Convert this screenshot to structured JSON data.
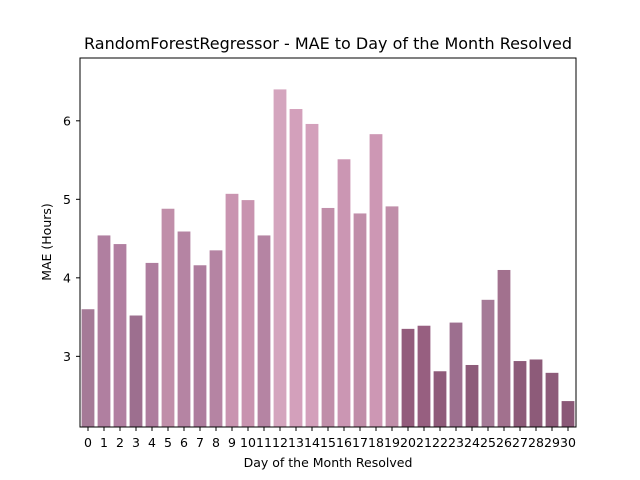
{
  "chart_data": {
    "type": "bar",
    "title": "RandomForestRegressor - MAE to Day of the Month Resolved",
    "xlabel": "Day of the Month Resolved",
    "ylabel": "MAE (Hours)",
    "categories": [
      "0",
      "1",
      "2",
      "3",
      "4",
      "5",
      "6",
      "7",
      "8",
      "9",
      "10",
      "11",
      "12",
      "13",
      "14",
      "15",
      "16",
      "17",
      "18",
      "19",
      "20",
      "21",
      "22",
      "23",
      "24",
      "25",
      "26",
      "27",
      "28",
      "29",
      "30"
    ],
    "values": [
      3.6,
      4.54,
      4.43,
      3.52,
      4.19,
      4.88,
      4.59,
      4.16,
      4.35,
      5.07,
      4.99,
      4.54,
      6.4,
      6.15,
      5.96,
      4.89,
      5.51,
      4.82,
      5.83,
      4.91,
      3.35,
      3.39,
      2.81,
      3.43,
      2.89,
      3.72,
      4.1,
      2.94,
      2.96,
      2.79,
      2.43
    ],
    "colors": [
      "#a57a97",
      "#b07fa0",
      "#b17fa1",
      "#9d6f8f",
      "#ae7d9e",
      "#c08ea9",
      "#b584a3",
      "#ae7d9e",
      "#b584a3",
      "#c994b0",
      "#c893af",
      "#b584a3",
      "#d4a5be",
      "#d3a0bb",
      "#d3a0bb",
      "#c08ea9",
      "#cb96b3",
      "#c08ea9",
      "#cd97b4",
      "#c08ea9",
      "#935c7c",
      "#975f80",
      "#8f5b7a",
      "#9d6f8f",
      "#8d5b79",
      "#a57a97",
      "#a2718e",
      "#8d5b79",
      "#8d5b79",
      "#8d5b79",
      "#8a5877"
    ],
    "ylim": [
      2.1,
      6.8
    ],
    "yticks": [
      3,
      4,
      5,
      6
    ],
    "grid": false,
    "legend": "none"
  }
}
